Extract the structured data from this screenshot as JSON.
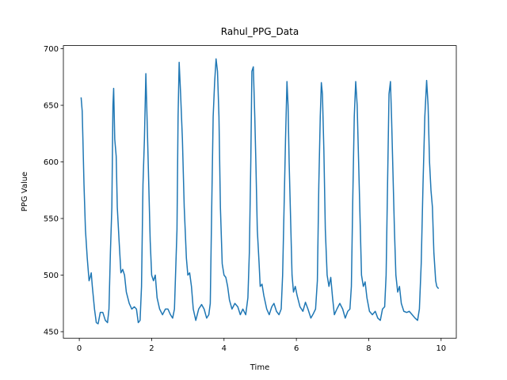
{
  "chart_data": {
    "type": "line",
    "title": "Rahul_PPG_Data",
    "x_label": "Time",
    "y_label": "PPG Value",
    "color": "#1f77b4",
    "x": [
      0.05,
      0.08,
      0.1,
      0.13,
      0.17,
      0.22,
      0.27,
      0.3,
      0.33,
      0.36,
      0.42,
      0.47,
      0.52,
      0.58,
      0.65,
      0.72,
      0.78,
      0.82,
      0.86,
      0.9,
      0.93,
      0.95,
      0.98,
      1.02,
      1.05,
      1.1,
      1.15,
      1.2,
      1.25,
      1.3,
      1.38,
      1.45,
      1.52,
      1.58,
      1.63,
      1.68,
      1.72,
      1.76,
      1.8,
      1.84,
      1.88,
      1.92,
      1.96,
      2.0,
      2.05,
      2.1,
      2.15,
      2.22,
      2.3,
      2.38,
      2.45,
      2.52,
      2.58,
      2.63,
      2.67,
      2.7,
      2.73,
      2.76,
      2.8,
      2.85,
      2.9,
      2.96,
      3.0,
      3.05,
      3.1,
      3.15,
      3.22,
      3.3,
      3.38,
      3.45,
      3.52,
      3.58,
      3.62,
      3.66,
      3.7,
      3.74,
      3.78,
      3.82,
      3.86,
      3.9,
      3.95,
      4.0,
      4.05,
      4.1,
      4.15,
      4.22,
      4.3,
      4.38,
      4.45,
      4.52,
      4.6,
      4.66,
      4.7,
      4.74,
      4.77,
      4.81,
      4.85,
      4.88,
      4.92,
      4.97,
      5.0,
      5.05,
      5.1,
      5.18,
      5.25,
      5.32,
      5.38,
      5.45,
      5.52,
      5.58,
      5.62,
      5.66,
      5.7,
      5.74,
      5.77,
      5.8,
      5.84,
      5.88,
      5.92,
      5.97,
      6.02,
      6.1,
      6.18,
      6.25,
      6.32,
      6.4,
      6.47,
      6.53,
      6.58,
      6.62,
      6.66,
      6.69,
      6.72,
      6.76,
      6.8,
      6.85,
      6.9,
      6.95,
      7.0,
      7.05,
      7.12,
      7.2,
      7.28,
      7.35,
      7.42,
      7.48,
      7.52,
      7.56,
      7.6,
      7.64,
      7.68,
      7.72,
      7.76,
      7.8,
      7.85,
      7.9,
      7.95,
      8.02,
      8.1,
      8.18,
      8.25,
      8.32,
      8.38,
      8.44,
      8.48,
      8.52,
      8.56,
      8.6,
      8.63,
      8.67,
      8.71,
      8.75,
      8.8,
      8.85,
      8.9,
      8.97,
      9.05,
      9.12,
      9.2,
      9.28,
      9.35,
      9.4,
      9.45,
      9.5,
      9.55,
      9.6,
      9.64,
      9.68,
      9.72,
      9.76,
      9.8,
      9.85,
      9.88,
      9.93
    ],
    "values": [
      657,
      645,
      620,
      580,
      540,
      515,
      495,
      498,
      502,
      490,
      470,
      458,
      457,
      467,
      467,
      460,
      458,
      470,
      520,
      560,
      650,
      665,
      620,
      605,
      560,
      530,
      502,
      505,
      500,
      485,
      475,
      470,
      472,
      470,
      458,
      460,
      490,
      580,
      620,
      678,
      630,
      580,
      530,
      500,
      495,
      500,
      480,
      470,
      465,
      470,
      470,
      465,
      462,
      470,
      510,
      540,
      640,
      688,
      660,
      620,
      560,
      515,
      500,
      502,
      490,
      470,
      460,
      470,
      474,
      470,
      462,
      465,
      475,
      560,
      640,
      670,
      691,
      680,
      640,
      560,
      510,
      500,
      498,
      490,
      478,
      470,
      475,
      472,
      465,
      470,
      465,
      480,
      520,
      600,
      680,
      684,
      640,
      600,
      540,
      510,
      490,
      492,
      482,
      470,
      465,
      472,
      475,
      468,
      465,
      470,
      500,
      560,
      620,
      671,
      650,
      600,
      550,
      500,
      485,
      490,
      482,
      472,
      468,
      476,
      470,
      462,
      466,
      470,
      495,
      580,
      640,
      670,
      660,
      610,
      540,
      500,
      490,
      498,
      480,
      465,
      470,
      475,
      470,
      462,
      468,
      470,
      490,
      570,
      640,
      671,
      650,
      600,
      550,
      500,
      490,
      494,
      480,
      468,
      465,
      468,
      462,
      460,
      470,
      472,
      500,
      580,
      660,
      671,
      640,
      590,
      540,
      500,
      485,
      490,
      475,
      468,
      467,
      468,
      465,
      462,
      460,
      470,
      510,
      580,
      640,
      672,
      650,
      600,
      575,
      560,
      520,
      495,
      490,
      488
    ],
    "xlim": [
      -0.44,
      10.42
    ],
    "ylim": [
      444.25,
      702.75
    ],
    "xticks": [
      0,
      2,
      4,
      6,
      8,
      10
    ],
    "yticks": [
      450,
      500,
      550,
      600,
      650,
      700
    ]
  }
}
